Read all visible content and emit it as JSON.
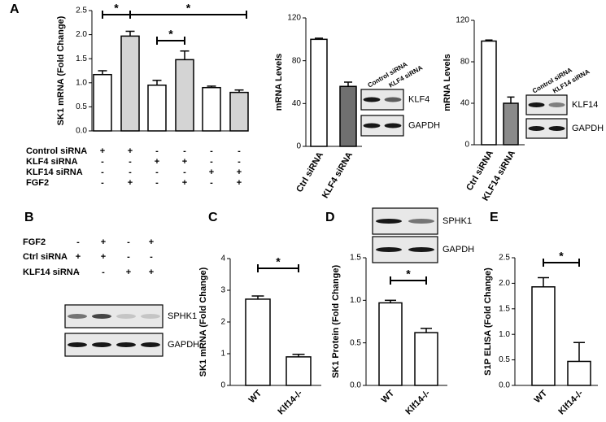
{
  "chart_data": [
    {
      "type": "bar",
      "panel": "A",
      "ylabel": "SK1 mRNA (Fold Change)",
      "values": [
        1.17,
        1.97,
        0.95,
        1.48,
        0.9,
        0.8
      ],
      "errors": [
        0.08,
        0.1,
        0.1,
        0.18,
        0.03,
        0.05
      ],
      "colors": [
        "#ffffff",
        "#d4d4d4",
        "#ffffff",
        "#d4d4d4",
        "#ffffff",
        "#d4d4d4"
      ],
      "ylim": [
        0,
        2.5
      ],
      "yticks": [
        {
          "value": 0,
          "label": "0.0"
        },
        0.5,
        {
          "value": 1,
          "label": "1.0"
        },
        1.5,
        {
          "value": 2,
          "label": "2.0"
        },
        2.5
      ],
      "annotations": [
        "*",
        "*",
        "*"
      ],
      "conditions": [
        {
          "label": "Control siRNA",
          "marks": [
            "+",
            "+",
            "-",
            "-",
            "-",
            "-"
          ]
        },
        {
          "label": "KLF4 siRNA",
          "marks": [
            "-",
            "-",
            "+",
            "+",
            "-",
            "-"
          ]
        },
        {
          "label": "KLF14 siRNA",
          "marks": [
            "-",
            "-",
            "-",
            "-",
            "+",
            "+"
          ]
        },
        {
          "label": "FGF2",
          "marks": [
            "-",
            "+",
            "-",
            "+",
            "-",
            "+"
          ]
        }
      ]
    },
    {
      "type": "bar",
      "ylabel": "mRNA Levels",
      "categories": [
        "Ctrl siRNA",
        "KLF4 siRNA"
      ],
      "values": [
        100,
        56
      ],
      "errors": [
        1,
        4
      ],
      "colors": [
        "#ffffff",
        "#707070"
      ],
      "ylim": [
        0,
        120
      ],
      "yticks": [
        0,
        40,
        80,
        120
      ],
      "blot": {
        "lanes": [
          "Control siRNA",
          "KLF4 siRNA"
        ],
        "bands": [
          "KLF4",
          "GAPDH"
        ]
      }
    },
    {
      "type": "bar",
      "ylabel": "mRNA Levels",
      "categories": [
        "Ctrl siRNA",
        "KLF14 siRNA"
      ],
      "values": [
        100,
        40
      ],
      "errors": [
        1,
        6
      ],
      "colors": [
        "#ffffff",
        "#8a8a8a"
      ],
      "ylim": [
        0,
        120
      ],
      "yticks": [
        0,
        40,
        80,
        120
      ],
      "blot": {
        "lanes": [
          "Control siRNA",
          "KLF14 siRNA"
        ],
        "bands": [
          "KLF14",
          "GAPDH"
        ]
      }
    },
    {
      "type": "blot",
      "panel": "B",
      "conditions": [
        {
          "label": "FGF2",
          "marks": [
            "-",
            "+",
            "-",
            "+"
          ]
        },
        {
          "label": "Ctrl siRNA",
          "marks": [
            "+",
            "+",
            "-",
            "-"
          ]
        },
        {
          "label": "KLF14 siRNA",
          "marks": [
            "-",
            "-",
            "+",
            "+"
          ]
        }
      ],
      "blot": {
        "bands": [
          "SPHK1",
          "GAPDH"
        ]
      }
    },
    {
      "type": "bar",
      "panel": "C",
      "ylabel": "SK1 mRNA (Fold Change)",
      "categories": [
        "WT",
        "Klf14-/-"
      ],
      "values": [
        2.72,
        0.9
      ],
      "errors": [
        0.1,
        0.08
      ],
      "colors": [
        "#ffffff",
        "#ffffff"
      ],
      "ylim": [
        0,
        4
      ],
      "yticks": [
        0,
        1,
        2,
        3,
        4
      ],
      "annotations": [
        "*"
      ]
    },
    {
      "type": "bar",
      "panel": "D",
      "ylabel": "SK1 Protein (Fold Change)",
      "categories": [
        "WT",
        "Klf14-/-"
      ],
      "values": [
        0.97,
        0.62
      ],
      "errors": [
        0.03,
        0.05
      ],
      "colors": [
        "#ffffff",
        "#ffffff"
      ],
      "ylim": [
        0,
        1.5
      ],
      "yticks": [
        {
          "value": 0,
          "label": "0.0"
        },
        0.5,
        {
          "value": 1,
          "label": "1.0"
        },
        1.5
      ],
      "annotations": [
        "*"
      ],
      "blot": {
        "bands": [
          "SPHK1",
          "GAPDH"
        ]
      }
    },
    {
      "type": "bar",
      "panel": "E",
      "ylabel": "S1P ELISA (Fold Change)",
      "categories": [
        "WT",
        "Klf14-/-"
      ],
      "values": [
        1.93,
        0.47
      ],
      "errors": [
        0.18,
        0.37
      ],
      "colors": [
        "#ffffff",
        "#ffffff"
      ],
      "ylim": [
        0,
        2.5
      ],
      "yticks": [
        {
          "value": 0,
          "label": "0.0"
        },
        0.5,
        {
          "value": 1,
          "label": "1.0"
        },
        1.5,
        {
          "value": 2,
          "label": "2.0"
        },
        2.5
      ],
      "annotations": [
        "*"
      ]
    }
  ]
}
